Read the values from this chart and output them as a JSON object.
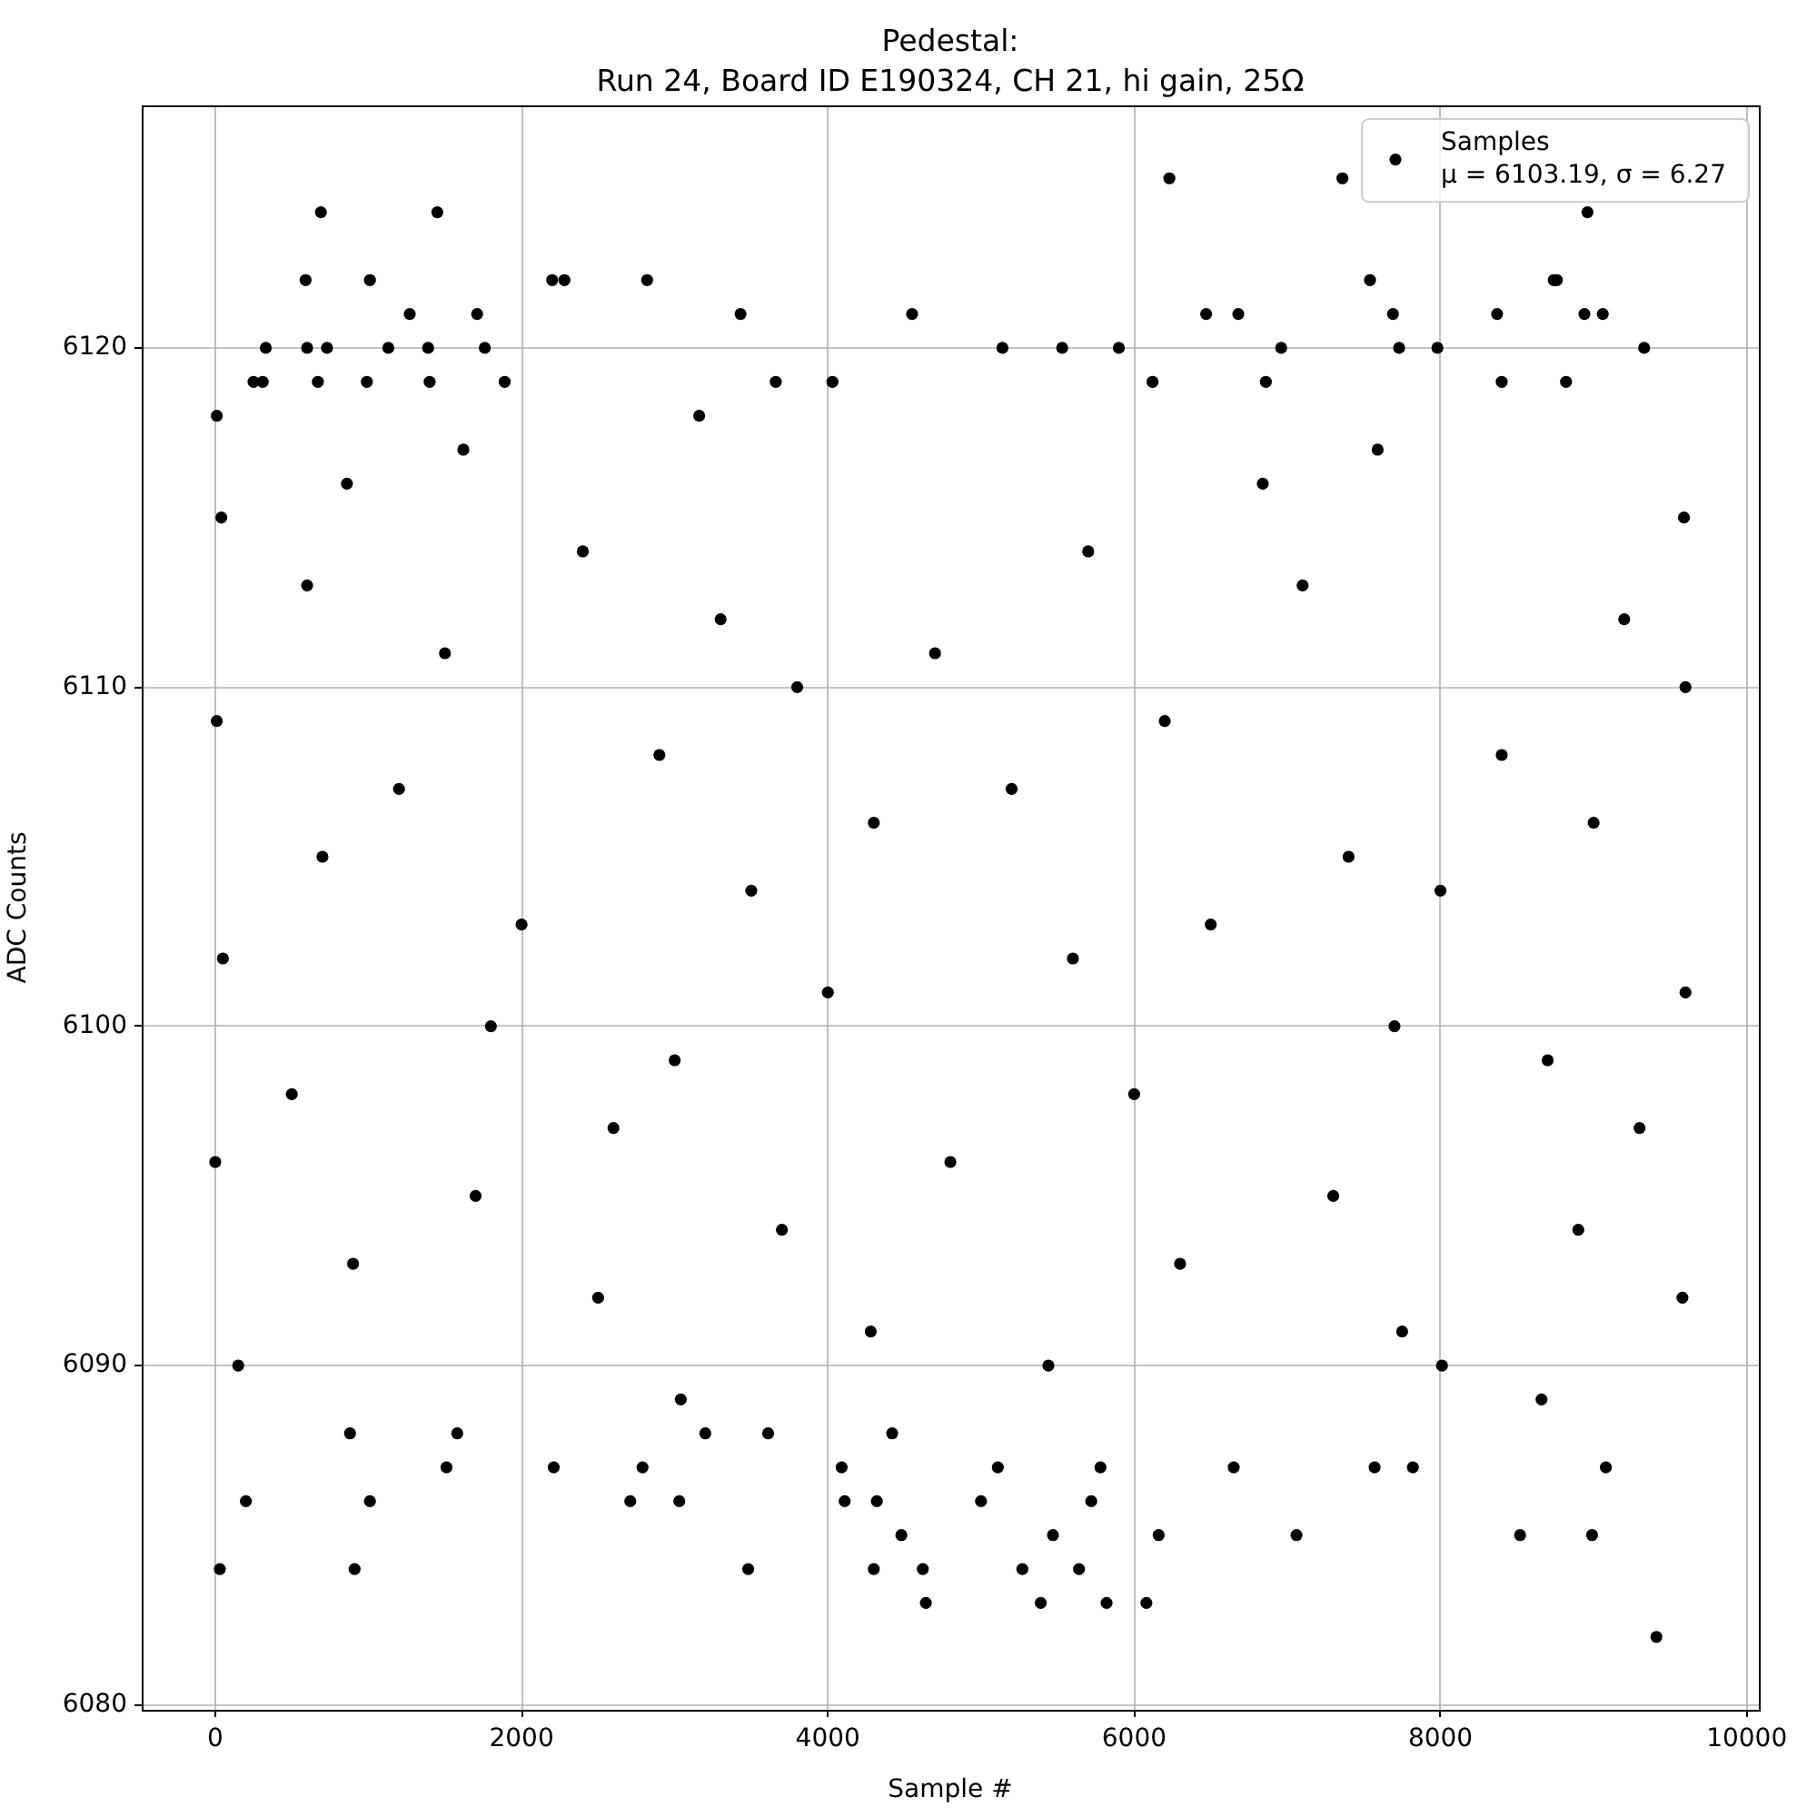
{
  "chart_data": {
    "type": "scatter",
    "title": "Pedestal:\nRun 24, Board ID E190324, CH 21, hi gain, 25Ω",
    "xlabel": "Sample #",
    "ylabel": "ADC Counts",
    "series": [
      {
        "name": "Samples\nμ = 6103.19, σ = 6.27",
        "color": "#000000",
        "x": [
          6230,
          7360,
          690,
          1450,
          8960,
          590,
          1010,
          2200,
          2280,
          2820,
          7540,
          8740,
          8760,
          1270,
          1710,
          3430,
          4550,
          6470,
          6680,
          7690,
          8370,
          8940,
          9060,
          330,
          600,
          730,
          1130,
          1390,
          1760,
          5140,
          5530,
          5900,
          6960,
          7730,
          7980,
          9330,
          250,
          310,
          670,
          990,
          1400,
          1890,
          3660,
          4030,
          6120,
          6860,
          8400,
          8820,
          9410,
          4640,
          5390,
          5820,
          6080,
          30,
          910,
          3480,
          4300,
          4620,
          5270,
          5640,
          4480,
          5470,
          6160,
          7060,
          8520,
          8990,
          200,
          1010,
          2710,
          3030,
          4110,
          4320,
          5000,
          5720,
          1510,
          2210,
          2790,
          4090,
          5110,
          5780,
          6650,
          7570,
          7820,
          9080,
          880,
          1580,
          3200,
          3610,
          4420,
          10,
          3160,
          1620,
          7590,
          860,
          6840,
          40,
          9590,
          2400,
          5700,
          600,
          7100,
          3300,
          9200,
          1500,
          4700,
          3800,
          9600,
          10,
          6200,
          2900,
          8400,
          1200,
          5200,
          4300,
          9000,
          700,
          7400,
          3500,
          8000,
          2000,
          6500,
          50,
          5600,
          4000,
          9600,
          1800,
          7700,
          3000,
          8700,
          500,
          6000,
          2600,
          9300,
          0,
          4800,
          1700,
          7300,
          3700,
          8900,
          900,
          6300,
          2500,
          9580,
          4280,
          7750,
          150,
          5440,
          8010,
          3040,
          8660
        ],
        "values": [
          6125,
          6125,
          6124,
          6124,
          6124,
          6122,
          6122,
          6122,
          6122,
          6122,
          6122,
          6122,
          6122,
          6121,
          6121,
          6121,
          6121,
          6121,
          6121,
          6121,
          6121,
          6121,
          6121,
          6120,
          6120,
          6120,
          6120,
          6120,
          6120,
          6120,
          6120,
          6120,
          6120,
          6120,
          6120,
          6120,
          6119,
          6119,
          6119,
          6119,
          6119,
          6119,
          6119,
          6119,
          6119,
          6119,
          6119,
          6119,
          6082,
          6083,
          6083,
          6083,
          6083,
          6084,
          6084,
          6084,
          6084,
          6084,
          6084,
          6084,
          6085,
          6085,
          6085,
          6085,
          6085,
          6085,
          6086,
          6086,
          6086,
          6086,
          6086,
          6086,
          6086,
          6086,
          6087,
          6087,
          6087,
          6087,
          6087,
          6087,
          6087,
          6087,
          6087,
          6087,
          6088,
          6088,
          6088,
          6088,
          6088,
          6118,
          6118,
          6117,
          6117,
          6116,
          6116,
          6115,
          6115,
          6114,
          6114,
          6113,
          6113,
          6112,
          6112,
          6111,
          6111,
          6110,
          6110,
          6109,
          6109,
          6108,
          6108,
          6107,
          6107,
          6106,
          6106,
          6105,
          6105,
          6104,
          6104,
          6103,
          6103,
          6102,
          6102,
          6101,
          6101,
          6100,
          6100,
          6099,
          6099,
          6098,
          6098,
          6097,
          6097,
          6096,
          6096,
          6095,
          6095,
          6094,
          6094,
          6093,
          6093,
          6092,
          6092,
          6091,
          6091,
          6090,
          6090,
          6090,
          6089,
          6089
        ]
      }
    ],
    "xlim": [
      -480,
      10079
    ],
    "xticks": [
      0,
      2000,
      4000,
      6000,
      8000,
      10000
    ],
    "ylim": [
      6079.85,
      6127.15
    ],
    "yticks": [
      6080,
      6090,
      6100,
      6110,
      6120
    ],
    "grid": true,
    "legend": "top right",
    "marker": "circle"
  }
}
